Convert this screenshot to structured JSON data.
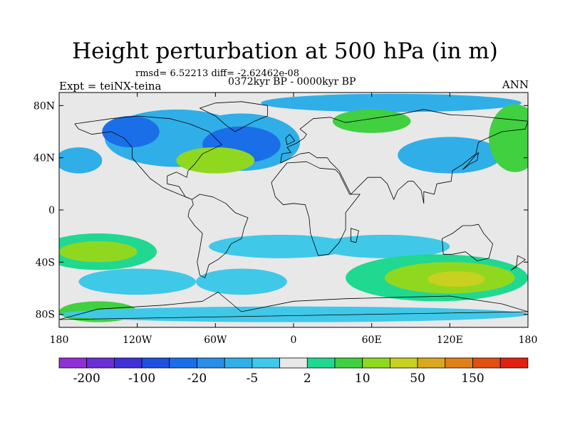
{
  "title": "Height perturbation at 500 hPa (in m)",
  "stats": "rmsd= 6.52213 diff= -2.62462e-08",
  "period": "0372kyr BP - 0000kyr BP",
  "experiment": "Expt = teiNX-teina",
  "season": "ANN",
  "map": {
    "projection": "cylindrical equidistant",
    "lon_range": [
      -180,
      180
    ],
    "lat_range": [
      -90,
      90
    ],
    "lat_ticks": [
      {
        "lat": 80,
        "label": "80N"
      },
      {
        "lat": 40,
        "label": "40N"
      },
      {
        "lat": 0,
        "label": "0"
      },
      {
        "lat": -40,
        "label": "40S"
      },
      {
        "lat": -80,
        "label": "80S"
      }
    ],
    "lon_ticks": [
      {
        "lon": -180,
        "label": "180"
      },
      {
        "lon": -120,
        "label": "120W"
      },
      {
        "lon": -60,
        "label": "60W"
      },
      {
        "lon": 0,
        "label": "0"
      },
      {
        "lon": 60,
        "label": "60E"
      },
      {
        "lon": 120,
        "label": "120E"
      },
      {
        "lon": 180,
        "label": "180"
      }
    ],
    "background_color": "#e8e8e8",
    "anomaly_regions": [
      {
        "lon": -90,
        "lat": 55,
        "rlon": 55,
        "rlat": 22,
        "level": -2
      },
      {
        "lon": -125,
        "lat": 60,
        "rlon": 22,
        "rlat": 12,
        "level": -4
      },
      {
        "lon": -40,
        "lat": 52,
        "rlon": 45,
        "rlat": 22,
        "level": -2
      },
      {
        "lon": -40,
        "lat": 50,
        "rlon": 30,
        "rlat": 14,
        "level": -4
      },
      {
        "lon": -60,
        "lat": 38,
        "rlon": 30,
        "rlat": 10,
        "level": 3
      },
      {
        "lon": 75,
        "lat": 82,
        "rlon": 100,
        "rlat": 7,
        "level": -2
      },
      {
        "lon": 120,
        "lat": 42,
        "rlon": 40,
        "rlat": 14,
        "level": -2
      },
      {
        "lon": 60,
        "lat": 68,
        "rlon": 30,
        "rlat": 9,
        "level": 2
      },
      {
        "lon": 170,
        "lat": 55,
        "rlon": 20,
        "rlat": 26,
        "level": 2
      },
      {
        "lon": -165,
        "lat": 38,
        "rlon": 18,
        "rlat": 10,
        "level": -2
      },
      {
        "lon": -150,
        "lat": -32,
        "rlon": 45,
        "rlat": 14,
        "level": 1
      },
      {
        "lon": -150,
        "lat": -32,
        "rlon": 30,
        "rlat": 8,
        "level": 3
      },
      {
        "lon": -10,
        "lat": -28,
        "rlon": 55,
        "rlat": 9,
        "level": -1
      },
      {
        "lon": 70,
        "lat": -28,
        "rlon": 50,
        "rlat": 9,
        "level": -1
      },
      {
        "lon": -120,
        "lat": -55,
        "rlon": 45,
        "rlat": 10,
        "level": -1
      },
      {
        "lon": -40,
        "lat": -55,
        "rlon": 35,
        "rlat": 10,
        "level": -1
      },
      {
        "lon": 110,
        "lat": -52,
        "rlon": 70,
        "rlat": 18,
        "level": 1
      },
      {
        "lon": 120,
        "lat": -52,
        "rlon": 50,
        "rlat": 12,
        "level": 3
      },
      {
        "lon": 125,
        "lat": -53,
        "rlon": 22,
        "rlat": 6,
        "level": 4
      },
      {
        "lon": -150,
        "lat": -78,
        "rlon": 30,
        "rlat": 8,
        "level": 2
      },
      {
        "lon": 0,
        "lat": -80,
        "rlon": 180,
        "rlat": 6,
        "level": -1
      }
    ]
  },
  "colorbar": {
    "colors": [
      "#8f2fd5",
      "#6a2fd5",
      "#4030d8",
      "#2050e0",
      "#1a6ee8",
      "#2a8ee8",
      "#30aee8",
      "#40c8e8",
      "#e8e8e8",
      "#20d890",
      "#40d040",
      "#90d820",
      "#c8d020",
      "#d8a820",
      "#e08018",
      "#e05010",
      "#e02010"
    ],
    "labels": [
      {
        "after_box": 1,
        "text": "-200"
      },
      {
        "after_box": 3,
        "text": "-100"
      },
      {
        "after_box": 5,
        "text": "-20"
      },
      {
        "after_box": 7,
        "text": "-5"
      },
      {
        "after_box": 9,
        "text": "2"
      },
      {
        "after_box": 11,
        "text": "10"
      },
      {
        "after_box": 13,
        "text": "50"
      },
      {
        "after_box": 15,
        "text": "150"
      }
    ]
  }
}
